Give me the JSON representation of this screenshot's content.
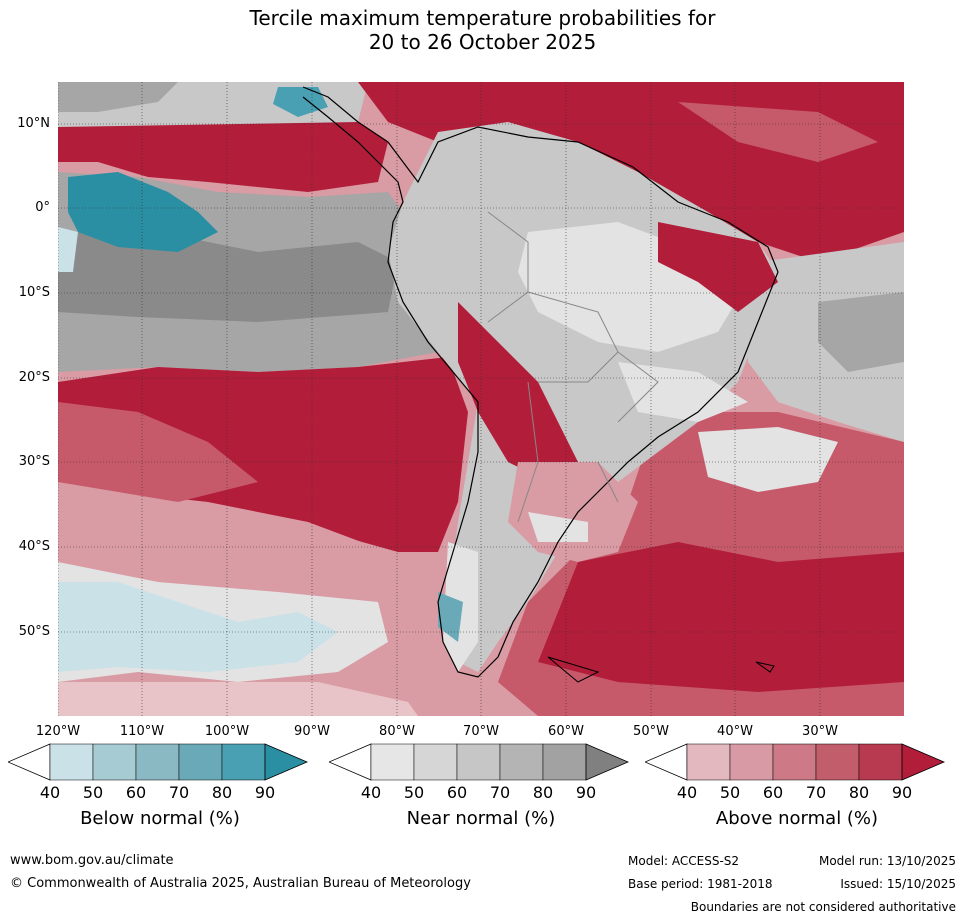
{
  "title_line1": "Tercile maximum temperature probabilities for",
  "title_line2": "20 to 26 October 2025",
  "lat_labels": [
    "10°N",
    "0°",
    "10°S",
    "20°S",
    "30°S",
    "40°S",
    "50°S"
  ],
  "lon_labels": [
    "120°W",
    "110°W",
    "100°W",
    "90°W",
    "80°W",
    "70°W",
    "60°W",
    "50°W",
    "40°W",
    "30°W"
  ],
  "colorbars": [
    {
      "name": "below",
      "label": "Below normal (%)",
      "ticks": [
        "40",
        "50",
        "60",
        "70",
        "80",
        "90"
      ],
      "colors": [
        "#ffffff",
        "#c9e1e7",
        "#a7cbd3",
        "#8ab8c3",
        "#6aaab8",
        "#49a0b3",
        "#2a8fa3"
      ]
    },
    {
      "name": "near",
      "label": "Near normal (%)",
      "ticks": [
        "40",
        "50",
        "60",
        "70",
        "80",
        "90"
      ],
      "colors": [
        "#ffffff",
        "#e6e6e6",
        "#d6d6d6",
        "#c6c6c6",
        "#b4b4b4",
        "#a2a2a2",
        "#808080"
      ]
    },
    {
      "name": "above",
      "label": "Above normal (%)",
      "ticks": [
        "40",
        "50",
        "60",
        "70",
        "80",
        "90"
      ],
      "colors": [
        "#ffffff",
        "#e3b8bf",
        "#d89aa4",
        "#cd7a86",
        "#c25e6c",
        "#b83a50",
        "#b21d3a"
      ]
    }
  ],
  "footer": {
    "website": "www.bom.gov.au/climate",
    "copyright": "© Commonwealth of Australia 2025, Australian Bureau of Meteorology",
    "model": "Model: ACCESS-S2",
    "base_period": "Base period: 1981-2018",
    "model_run": "Model run: 13/10/2025",
    "issued": "Issued: 15/10/2025",
    "disclaimer": "Boundaries are not considered authoritative"
  },
  "colors": {
    "above_strong": "#b21d3a",
    "above_mid": "#c65a6a",
    "above_light": "#d99ba4",
    "above_pale": "#e8c4c9",
    "near_strong": "#8a8a8a",
    "near_mid": "#a6a6a6",
    "near_light": "#c8c8c8",
    "near_pale": "#e3e3e3",
    "below_strong": "#2a8fa3",
    "below_light": "#c9e1e7"
  }
}
